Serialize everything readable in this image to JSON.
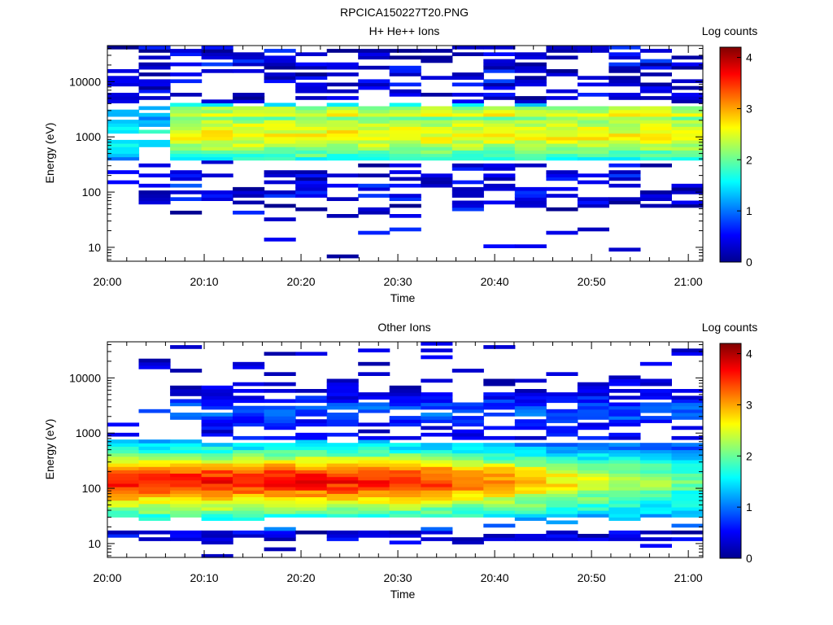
{
  "figure_title": "RPCICA150227T20.PNG",
  "colorscale": [
    "#00008f",
    "#0000ff",
    "#0080ff",
    "#00ffff",
    "#80ff80",
    "#ffff00",
    "#ff8000",
    "#ff0000",
    "#800000"
  ],
  "chart_data": [
    {
      "type": "heatmap",
      "title": "H+ He++ Ions",
      "xlabel": "Time",
      "ylabel": "Energy (eV)",
      "x_ticks": [
        "20:00",
        "20:10",
        "20:20",
        "20:30",
        "20:40",
        "20:50",
        "21:00"
      ],
      "y_ticks": [
        "10",
        "100",
        "1000",
        "10000"
      ],
      "y_scale": "log",
      "ylim": [
        5.6,
        45000
      ],
      "xlim_minutes": [
        0,
        61.5
      ],
      "colorbar": {
        "label": "Log counts",
        "ticks": [
          "0",
          "1",
          "2",
          "3",
          "4"
        ],
        "range": [
          0,
          4.2
        ]
      },
      "time_bins": 19,
      "grid": false,
      "description": "Dense band between ~300 eV and ~3000 eV with peak log counts ~2.5-3; sparse low-count speckle at high (>5000 eV) and low (30-300 eV) energies."
    },
    {
      "type": "heatmap",
      "title": "Other Ions",
      "xlabel": "Time",
      "ylabel": "Energy (eV)",
      "x_ticks": [
        "20:00",
        "20:10",
        "20:20",
        "20:30",
        "20:40",
        "20:50",
        "21:00"
      ],
      "y_ticks": [
        "10",
        "100",
        "1000",
        "10000"
      ],
      "y_scale": "log",
      "ylim": [
        5.6,
        45000
      ],
      "xlim_minutes": [
        0,
        61.5
      ],
      "colorbar": {
        "label": "Log counts",
        "ticks": [
          "0",
          "1",
          "2",
          "3",
          "4"
        ],
        "range": [
          0,
          4.2
        ]
      },
      "time_bins": 19,
      "grid": false,
      "description": "Broad band from ~18 eV to ~1000 eV with peak log counts ~3-3.7 near 100-300 eV early in the hour, weakening later; secondary band near 1500-5000 eV after 20:07."
    }
  ]
}
